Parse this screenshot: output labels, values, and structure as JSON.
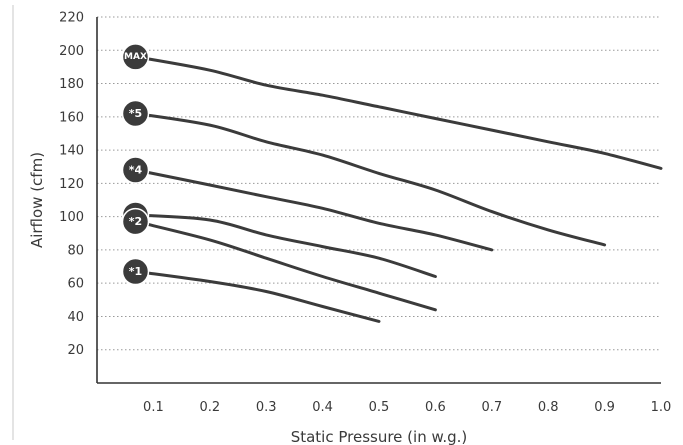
{
  "chart_data": {
    "type": "line",
    "xlabel": "Static Pressure (in w.g.)",
    "ylabel": "Airflow (cfm)",
    "xlim": [
      0,
      1.0
    ],
    "ylim": [
      0,
      220
    ],
    "x_ticks": [
      "0.1",
      "0.2",
      "0.3",
      "0.4",
      "0.5",
      "0.6",
      "0.7",
      "0.8",
      "0.9",
      "1.0"
    ],
    "y_ticks": [
      "20",
      "40",
      "60",
      "80",
      "100",
      "120",
      "140",
      "160",
      "180",
      "200",
      "220"
    ],
    "grid": true,
    "series": [
      {
        "name": "MAX",
        "x": [
          0.07,
          0.2,
          0.3,
          0.4,
          0.5,
          0.6,
          0.7,
          0.8,
          0.9,
          1.0
        ],
        "y": [
          196,
          188,
          179,
          173,
          166,
          159,
          152,
          145,
          138,
          129
        ]
      },
      {
        "name": "*5",
        "x": [
          0.07,
          0.2,
          0.3,
          0.4,
          0.5,
          0.6,
          0.7,
          0.8,
          0.9
        ],
        "y": [
          162,
          155,
          145,
          137,
          126,
          116,
          103,
          92,
          83
        ]
      },
      {
        "name": "*4",
        "x": [
          0.07,
          0.2,
          0.3,
          0.4,
          0.5,
          0.6,
          0.7
        ],
        "y": [
          128,
          119,
          112,
          105,
          96,
          89,
          80
        ]
      },
      {
        "name": "*3",
        "x": [
          0.07,
          0.2,
          0.3,
          0.4,
          0.5,
          0.6
        ],
        "y": [
          101,
          98,
          89,
          82,
          75,
          64
        ]
      },
      {
        "name": "*2",
        "x": [
          0.07,
          0.2,
          0.3,
          0.4,
          0.5,
          0.6
        ],
        "y": [
          97,
          86,
          75,
          64,
          54,
          44
        ]
      },
      {
        "name": "*1",
        "x": [
          0.07,
          0.2,
          0.3,
          0.4,
          0.5
        ],
        "y": [
          67,
          61,
          55,
          46,
          37
        ]
      }
    ],
    "colors": {
      "line": "#3b3b3b",
      "badge": "#3b3b3b",
      "badge_text": "#ffffff"
    }
  }
}
